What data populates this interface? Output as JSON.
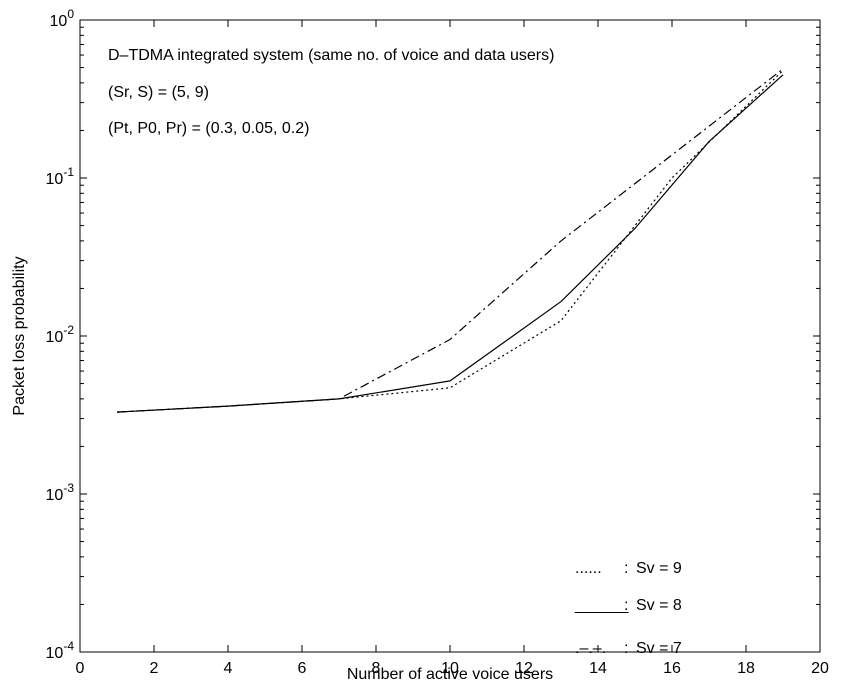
{
  "chart_data": {
    "type": "line",
    "title": "",
    "xlabel": "Number of active voice users",
    "ylabel": "Packet loss probability",
    "xlim": [
      0,
      20
    ],
    "ylim": [
      0.0001,
      1
    ],
    "yscale": "log",
    "grid": false,
    "x_ticks": [
      "0",
      "2",
      "4",
      "6",
      "8",
      "10",
      "12",
      "14",
      "16",
      "18",
      "20"
    ],
    "y_ticks": [
      {
        "base": "10",
        "exp": "-4",
        "value": 0.0001
      },
      {
        "base": "10",
        "exp": "-3",
        "value": 0.001
      },
      {
        "base": "10",
        "exp": "-2",
        "value": 0.01
      },
      {
        "base": "10",
        "exp": "-1",
        "value": 0.1
      },
      {
        "base": "10",
        "exp": "0",
        "value": 1
      }
    ],
    "annotations": [
      "D–TDMA integrated system (same no. of voice and data users)",
      "(Sr, S) = (5, 9)",
      "(Pt, P0, Pr) = (0.3, 0.05, 0.2)"
    ],
    "legend_position": "bottom-right",
    "series": [
      {
        "name": "Sv = 9",
        "legend_symbol": "......",
        "style": "dotted",
        "x": [
          1,
          4,
          7,
          10,
          13,
          16,
          19
        ],
        "y": [
          0.0033,
          0.0036,
          0.004,
          0.0047,
          0.0125,
          0.1,
          0.48
        ]
      },
      {
        "name": "Sv = 8",
        "legend_symbol": "______",
        "style": "solid",
        "x": [
          1,
          4,
          7,
          10,
          13,
          15,
          17,
          19
        ],
        "y": [
          0.0033,
          0.0036,
          0.004,
          0.0052,
          0.0165,
          0.048,
          0.17,
          0.45
        ]
      },
      {
        "name": "Sv = 7",
        "legend_symbol": ".–.–.",
        "style": "dashdot",
        "x": [
          1,
          4,
          7,
          10,
          13,
          16,
          19
        ],
        "y": [
          0.0033,
          0.0036,
          0.004,
          0.0095,
          0.04,
          0.14,
          0.49
        ]
      }
    ],
    "color": "#000000"
  }
}
